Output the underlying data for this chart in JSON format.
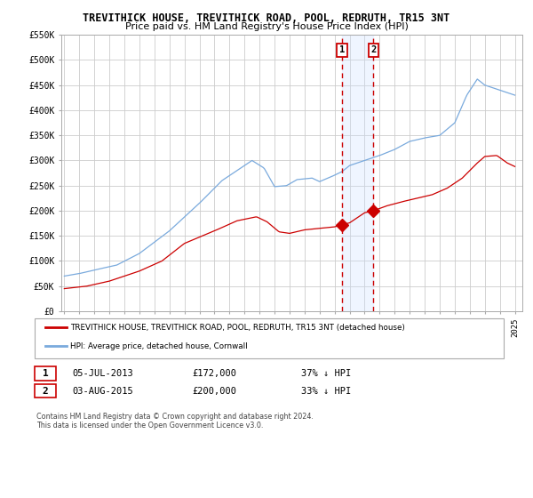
{
  "title": "TREVITHICK HOUSE, TREVITHICK ROAD, POOL, REDRUTH, TR15 3NT",
  "subtitle": "Price paid vs. HM Land Registry's House Price Index (HPI)",
  "ylim": [
    0,
    550000
  ],
  "ytick_labels": [
    "£0",
    "£50K",
    "£100K",
    "£150K",
    "£200K",
    "£250K",
    "£300K",
    "£350K",
    "£400K",
    "£450K",
    "£500K",
    "£550K"
  ],
  "ytick_values": [
    0,
    50000,
    100000,
    150000,
    200000,
    250000,
    300000,
    350000,
    400000,
    450000,
    500000,
    550000
  ],
  "hpi_color": "#7aaadd",
  "price_color": "#cc0000",
  "grid_color": "#cccccc",
  "sale1_date": 2013.5,
  "sale1_price": 172000,
  "sale2_date": 2015.58,
  "sale2_price": 200000,
  "vline_color": "#cc0000",
  "shade_color": "#cce0ff",
  "legend_label_red": "TREVITHICK HOUSE, TREVITHICK ROAD, POOL, REDRUTH, TR15 3NT (detached house)",
  "legend_label_blue": "HPI: Average price, detached house, Cornwall",
  "transaction1_num": "1",
  "transaction1_date": "05-JUL-2013",
  "transaction1_price": "£172,000",
  "transaction1_hpi": "37% ↓ HPI",
  "transaction2_num": "2",
  "transaction2_date": "03-AUG-2015",
  "transaction2_price": "£200,000",
  "transaction2_hpi": "33% ↓ HPI",
  "footnote": "Contains HM Land Registry data © Crown copyright and database right 2024.\nThis data is licensed under the Open Government Licence v3.0.",
  "background_color": "#ffffff"
}
